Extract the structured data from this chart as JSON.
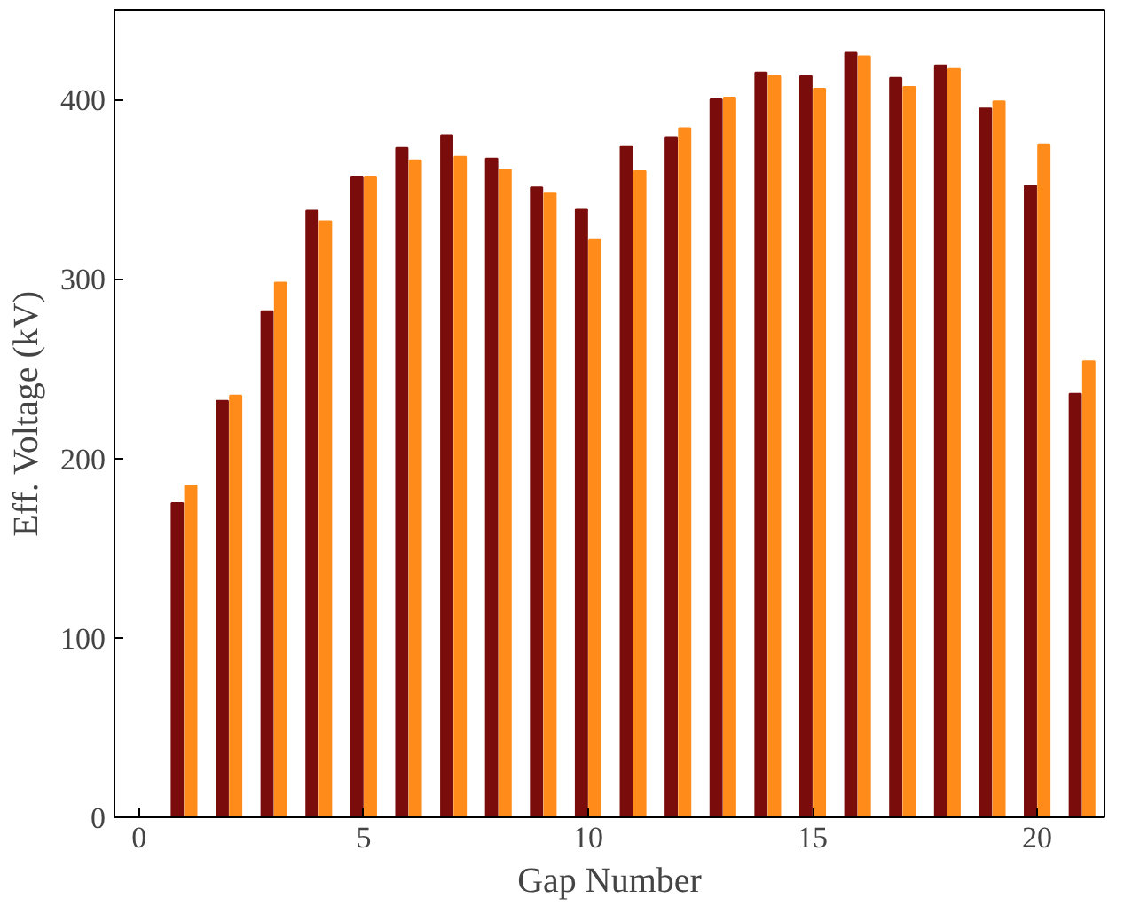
{
  "chart_data": {
    "type": "bar",
    "xlabel": "Gap Number",
    "ylabel": "Eff. Voltage (kV)",
    "x": [
      1,
      2,
      3,
      4,
      5,
      6,
      7,
      8,
      9,
      10,
      11,
      12,
      13,
      14,
      15,
      16,
      17,
      18,
      19,
      20,
      21
    ],
    "series": [
      {
        "color": "#7b0c0c",
        "values": [
          175,
          232,
          282,
          338,
          357,
          373,
          380,
          367,
          351,
          339,
          374,
          379,
          400,
          415,
          413,
          426,
          412,
          419,
          395,
          352,
          236
        ]
      },
      {
        "color": "#ff8c1a",
        "values": [
          185,
          235,
          298,
          332,
          357,
          366,
          368,
          361,
          348,
          322,
          360,
          384,
          401,
          413,
          406,
          424,
          407,
          417,
          399,
          375,
          254
        ]
      }
    ],
    "xlim": [
      -0.55,
      21.5
    ],
    "xticks": [
      0,
      5,
      10,
      15,
      20
    ],
    "ylim": [
      0,
      450
    ],
    "yticks": [
      0,
      100,
      200,
      300,
      400
    ],
    "grid": false
  }
}
